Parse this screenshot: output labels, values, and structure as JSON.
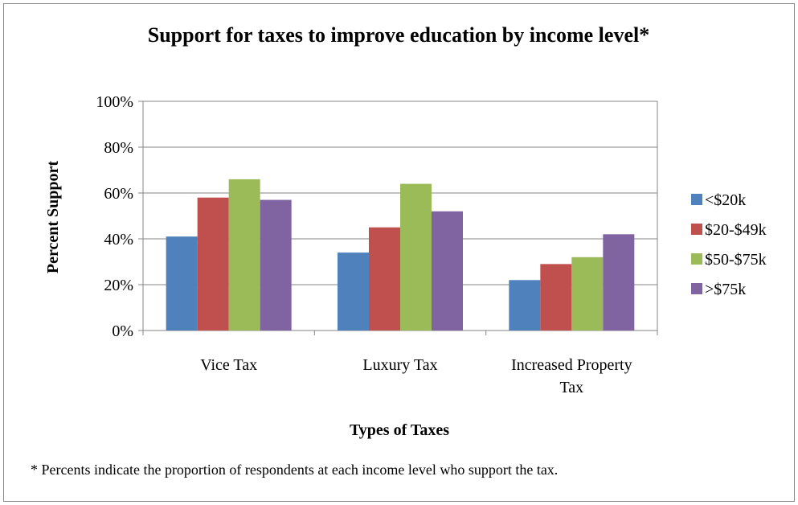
{
  "chart_data": {
    "type": "bar",
    "title": "Support for taxes to improve education by income level*",
    "xlabel": "Types of Taxes",
    "ylabel": "Percent Support",
    "categories": [
      [
        "Vice Tax"
      ],
      [
        "Luxury Tax"
      ],
      [
        "Increased Property",
        "Tax"
      ]
    ],
    "series": [
      {
        "name": "<$20k",
        "color": "#4f81bd",
        "values": [
          41,
          34,
          22
        ]
      },
      {
        "name": "$20-$49k",
        "color": "#c0504d",
        "values": [
          58,
          45,
          29
        ]
      },
      {
        "name": "$50-$75k",
        "color": "#9bbb59",
        "values": [
          66,
          64,
          32
        ]
      },
      {
        "name": ">$75k",
        "color": "#8064a2",
        "values": [
          57,
          52,
          42
        ]
      }
    ],
    "ylim": [
      0,
      100
    ],
    "yticks": [
      0,
      20,
      40,
      60,
      80,
      100
    ],
    "ytick_labels": [
      "0%",
      "20%",
      "40%",
      "60%",
      "80%",
      "100%"
    ],
    "grid": true,
    "legend_position": "right",
    "footnote": "* Percents indicate the proportion of respondents at each income level who support the tax."
  }
}
